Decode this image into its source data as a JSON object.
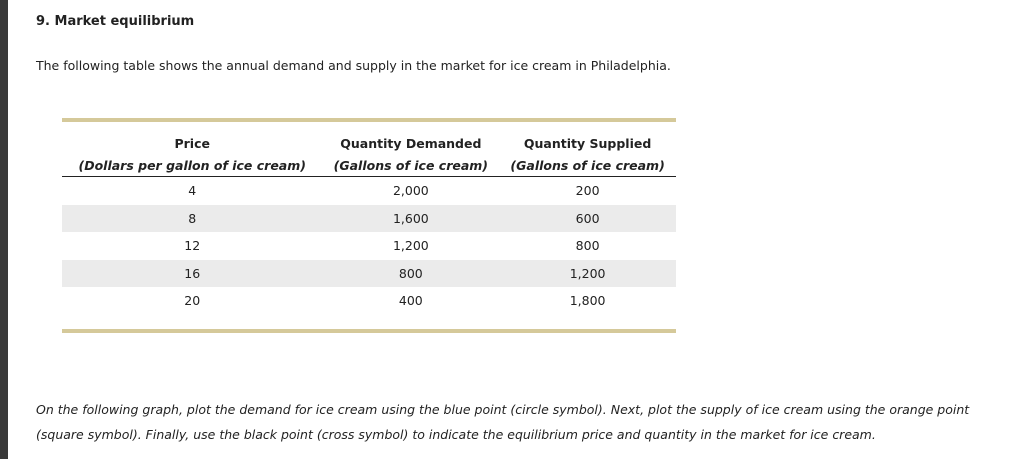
{
  "header": {
    "title": "9. Market equilibrium",
    "intro": "The following table shows the annual demand and supply in the market for ice cream in Philadelphia."
  },
  "table": {
    "columns": [
      {
        "name": "Price",
        "unit": "(Dollars per gallon of ice cream)"
      },
      {
        "name": "Quantity Demanded",
        "unit": "(Gallons of ice cream)"
      },
      {
        "name": "Quantity Supplied",
        "unit": "(Gallons of ice cream)"
      }
    ],
    "rows": [
      [
        "4",
        "2,000",
        "200"
      ],
      [
        "8",
        "1,600",
        "600"
      ],
      [
        "12",
        "1,200",
        "800"
      ],
      [
        "16",
        "800",
        "1,200"
      ],
      [
        "20",
        "400",
        "1,800"
      ]
    ]
  },
  "instructions": "On the following graph, plot the demand for ice cream using the blue point (circle symbol). Next, plot the supply of ice cream using the orange point (square symbol). Finally, use the black point (cross symbol) to indicate the equilibrium price and quantity in the market for ice cream."
}
